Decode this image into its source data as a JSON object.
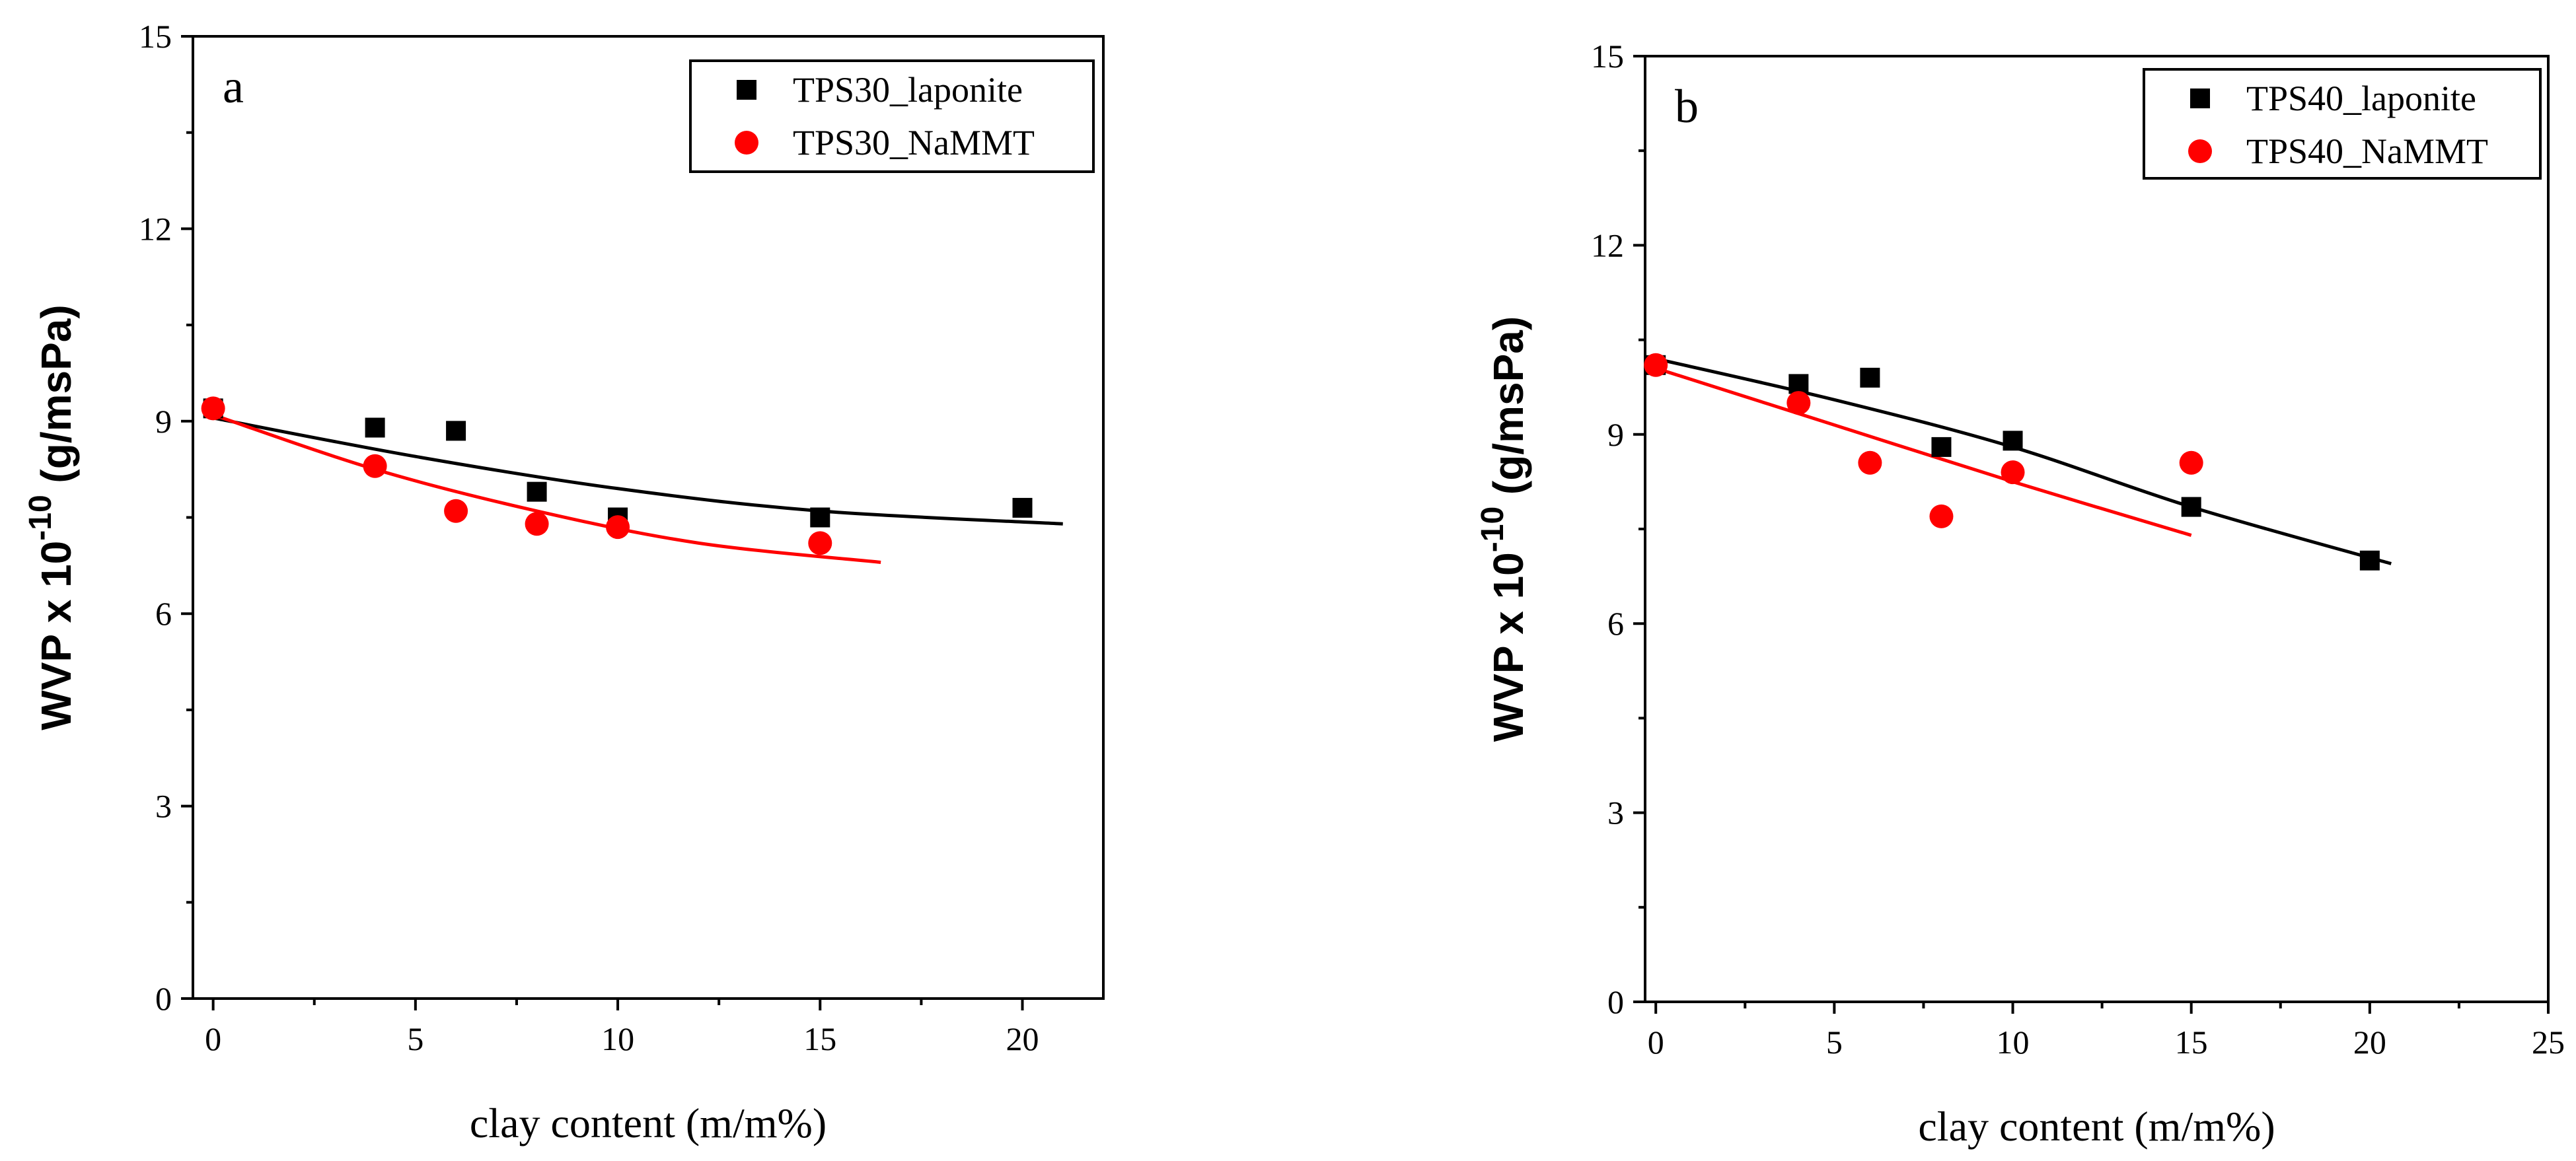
{
  "colors": {
    "laponite": "#000000",
    "nammt": "#ff0000",
    "axis": "#000000"
  },
  "chart_data": [
    {
      "type": "scatter",
      "panel_label": "a",
      "xlabel": "clay content (m/m%)",
      "ylabel": {
        "main": "WVP x 10",
        "exponent": "-10",
        "unit": " (g/msPa)"
      },
      "xlim": [
        -0.5,
        22
      ],
      "ylim": [
        0,
        15
      ],
      "xticks": [
        0,
        5,
        10,
        15,
        20
      ],
      "xtick_labels": [
        "0",
        "5",
        "10",
        "15",
        "20"
      ],
      "yticks": [
        0,
        3,
        6,
        9,
        12,
        15
      ],
      "ytick_labels": [
        "0",
        "3",
        "6",
        "9",
        "12",
        "15"
      ],
      "legend_position": "top-right",
      "series": [
        {
          "name": "TPS30_laponite",
          "marker": "square",
          "color": "#000000",
          "x": [
            0,
            4,
            6,
            8,
            10,
            15,
            20
          ],
          "y": [
            9.2,
            8.9,
            8.85,
            7.9,
            7.5,
            7.5,
            7.65
          ],
          "fit": {
            "x": [
              0,
              5,
              10,
              15,
              21
            ],
            "y": [
              9.05,
              8.45,
              7.95,
              7.6,
              7.4
            ]
          }
        },
        {
          "name": "TPS30_NaMMT",
          "marker": "circle",
          "color": "#ff0000",
          "x": [
            0,
            4,
            6,
            8,
            10,
            15
          ],
          "y": [
            9.2,
            8.3,
            7.6,
            7.4,
            7.35,
            7.1
          ],
          "fit": {
            "x": [
              0,
              4,
              8,
              12,
              16.5
            ],
            "y": [
              9.1,
              8.25,
              7.6,
              7.1,
              6.8
            ]
          }
        }
      ]
    },
    {
      "type": "scatter",
      "panel_label": "b",
      "xlabel": "clay content (m/m%)",
      "ylabel": {
        "main": "WVP x 10",
        "exponent": "-10",
        "unit": " (g/msPa)"
      },
      "xlim": [
        -0.3,
        25
      ],
      "ylim": [
        0,
        15
      ],
      "xticks": [
        0,
        5,
        10,
        15,
        20,
        25
      ],
      "xtick_labels": [
        "0",
        "5",
        "10",
        "15",
        "20",
        "25"
      ],
      "yticks": [
        0,
        3,
        6,
        9,
        12,
        15
      ],
      "ytick_labels": [
        "0",
        "3",
        "6",
        "9",
        "12",
        "15"
      ],
      "legend_position": "top-right",
      "series": [
        {
          "name": "TPS40_laponite",
          "marker": "square",
          "color": "#000000",
          "x": [
            0,
            4,
            6,
            8,
            10,
            15,
            20
          ],
          "y": [
            10.1,
            9.8,
            9.9,
            8.8,
            8.9,
            7.85,
            7.0
          ],
          "fit": {
            "x": [
              0,
              5,
              10,
              15,
              20.6
            ],
            "y": [
              10.2,
              9.55,
              8.8,
              7.85,
              6.95
            ]
          }
        },
        {
          "name": "TPS40_NaMMT",
          "marker": "circle",
          "color": "#ff0000",
          "x": [
            0,
            4,
            6,
            8,
            10,
            15
          ],
          "y": [
            10.1,
            9.5,
            8.55,
            7.7,
            8.4,
            8.55
          ],
          "fit": {
            "x": [
              0,
              5,
              10,
              15
            ],
            "y": [
              10.05,
              9.15,
              8.25,
              7.4
            ]
          }
        }
      ]
    }
  ]
}
